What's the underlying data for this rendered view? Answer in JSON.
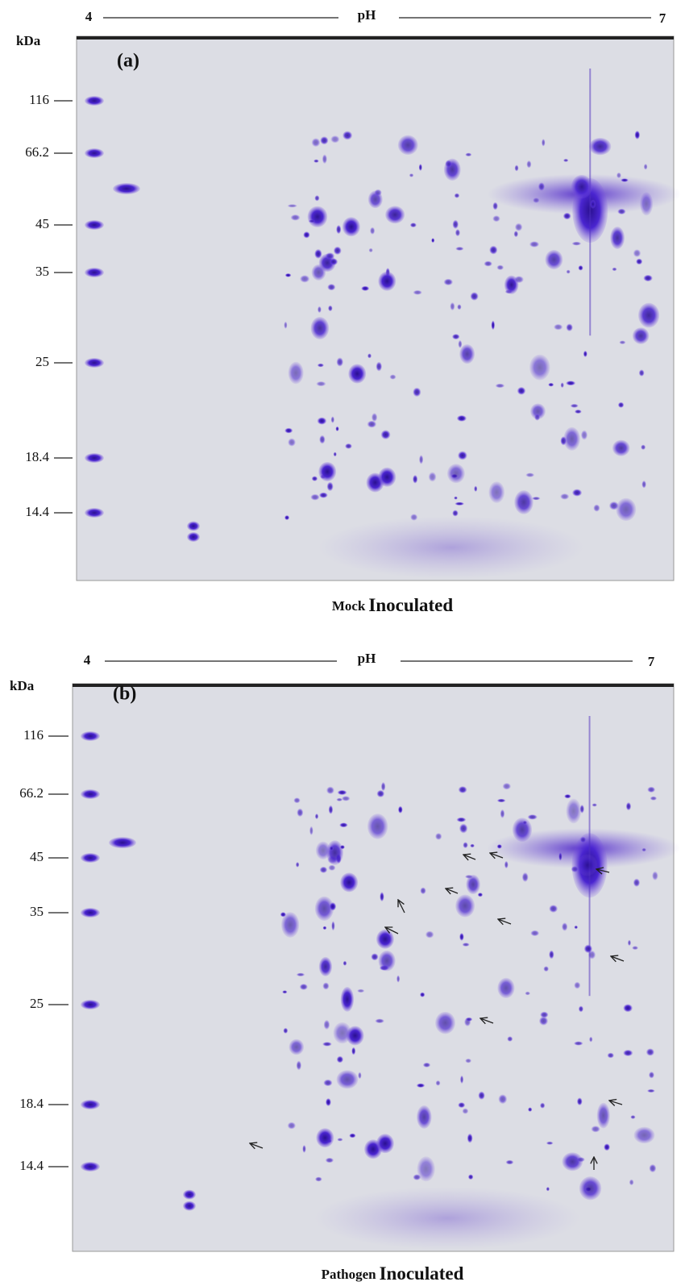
{
  "panels": [
    {
      "ph_low": "4",
      "ph_label": "pH",
      "ph_high": "7",
      "unit": "kDa",
      "label": "(a)",
      "markers": [
        "116",
        "66.2",
        "45",
        "35",
        "25",
        "18.4",
        "14.4"
      ],
      "caption_small": "Mock",
      "caption_large": "Inoculated"
    },
    {
      "ph_low": "4",
      "ph_label": "pH",
      "ph_high": "7",
      "unit": "kDa",
      "label": "(b)",
      "markers": [
        "116",
        "66.2",
        "45",
        "35",
        "25",
        "18.4",
        "14.4"
      ],
      "caption_small": "Pathogen",
      "caption_large": "Inoculated"
    }
  ]
}
